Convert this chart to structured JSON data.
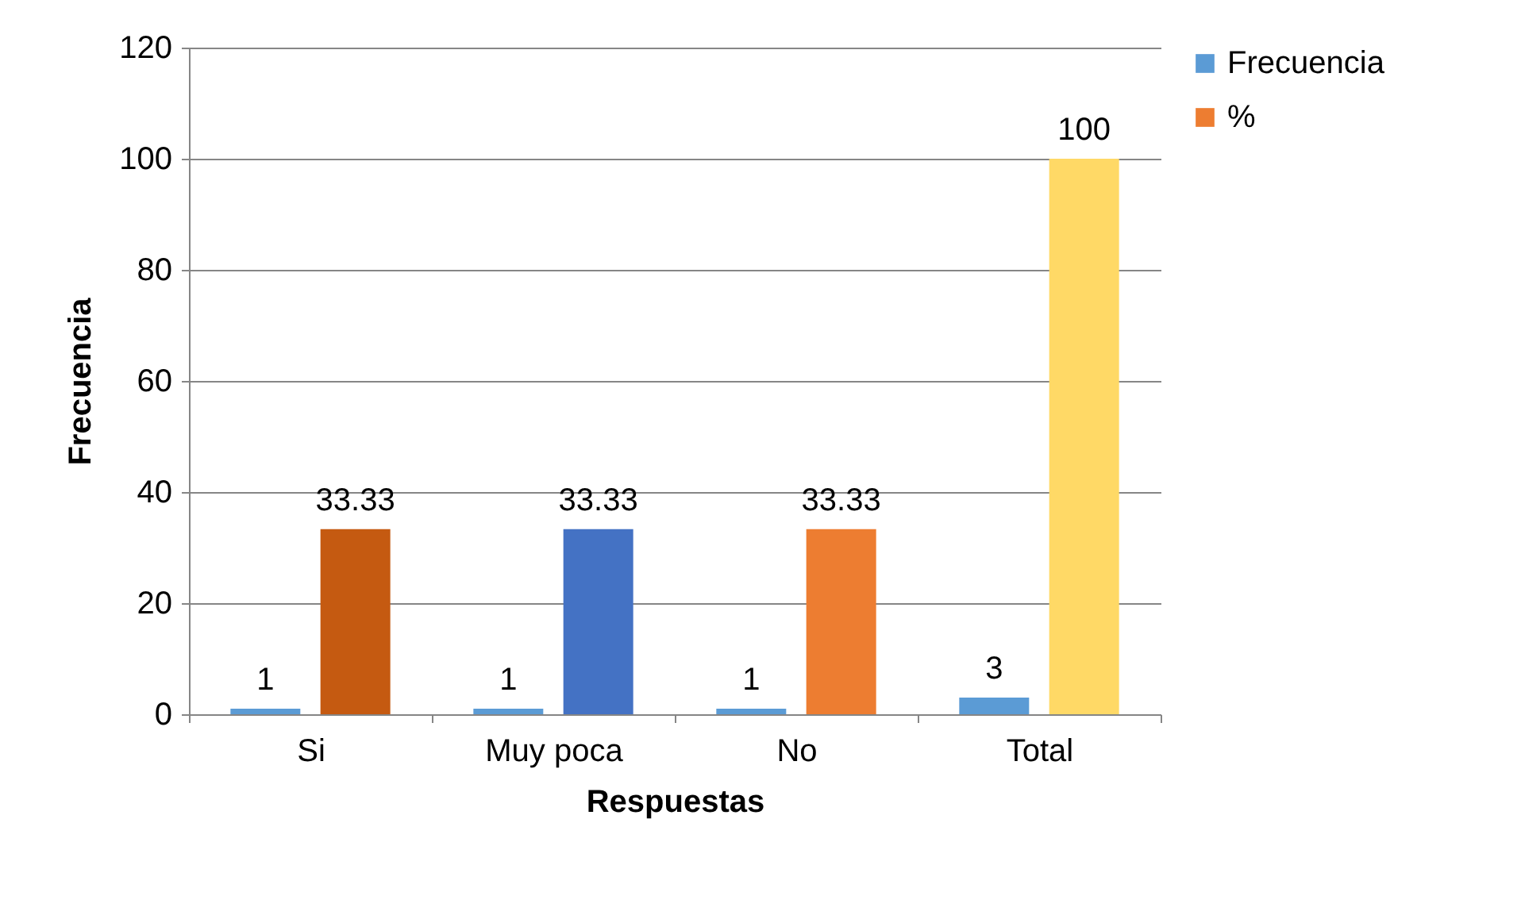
{
  "chart_data": {
    "type": "bar",
    "xlabel": "Respuestas",
    "ylabel": "Frecuencia",
    "categories": [
      "Si",
      "Muy poca",
      "No",
      "Total"
    ],
    "series": [
      {
        "name": "Frecuencia",
        "color": "#5b9bd5",
        "values": [
          1,
          1,
          1,
          3
        ]
      },
      {
        "name": "%",
        "color": "#ed7d31",
        "colors": [
          "#c55a11",
          "#4472c4",
          "#ed7d31",
          "#ffd966"
        ],
        "values": [
          33.33,
          33.33,
          33.33,
          100
        ]
      }
    ],
    "ylim": [
      0,
      120
    ],
    "yticks": [
      0,
      20,
      40,
      60,
      80,
      100,
      120
    ],
    "grid": "y",
    "legend": "right",
    "data_labels": true
  }
}
